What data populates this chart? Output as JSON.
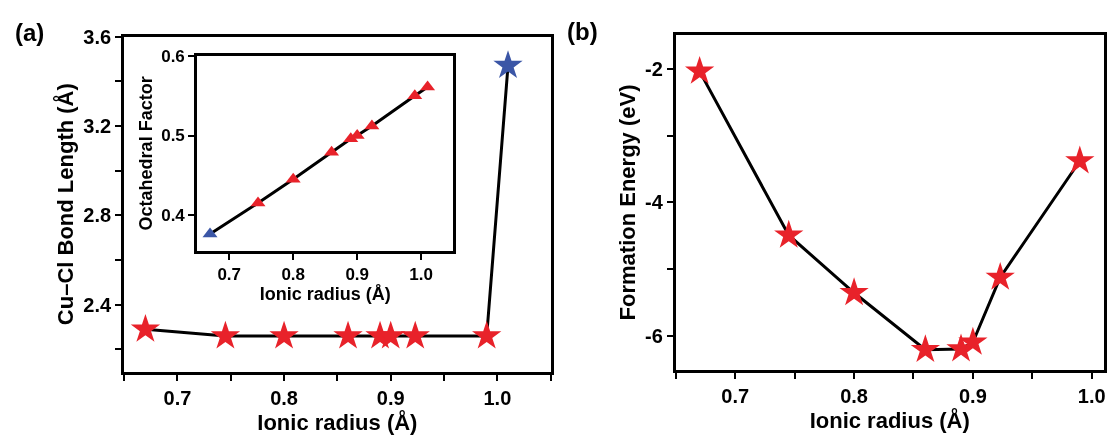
{
  "chart_data": [
    {
      "type": "line",
      "title": "(a)",
      "xlabel": "Ionic radius (Å)",
      "ylabel": "Cu–Cl Bond Length (Å)",
      "x": [
        0.67,
        0.745,
        0.8,
        0.86,
        0.89,
        0.9,
        0.923,
        0.99,
        1.01
      ],
      "series": [
        {
          "color": "#000000",
          "colors": [
            "#e8222a",
            "#e8222a",
            "#e8222a",
            "#e8222a",
            "#e8222a",
            "#e8222a",
            "#e8222a",
            "#e8222a",
            "#3b56a6"
          ],
          "values": [
            2.29,
            2.26,
            2.26,
            2.26,
            2.26,
            2.26,
            2.26,
            2.26,
            3.47
          ]
        }
      ],
      "xlim": [
        0.65,
        1.05
      ],
      "ylim": [
        2.1,
        3.6
      ],
      "xticks": [
        {
          "value": 0.65,
          "label": null
        },
        0.7,
        {
          "value": 0.75,
          "label": null
        },
        0.8,
        {
          "value": 0.85,
          "label": null
        },
        0.9,
        {
          "value": 0.95,
          "label": null
        },
        {
          "value": 1.0,
          "label": "1.0"
        },
        {
          "value": 1.05,
          "label": null
        }
      ],
      "yticks": [
        {
          "value": 2.2,
          "label": null
        },
        2.4,
        {
          "value": 2.6,
          "label": null
        },
        2.8,
        {
          "value": 3.0,
          "label": null
        },
        3.2,
        {
          "value": 3.4,
          "label": null
        },
        3.6
      ],
      "marker": "star"
    },
    {
      "type": "line",
      "xlabel": "Ionic radius (Å)",
      "ylabel": "Octahedral Factor",
      "x": [
        0.67,
        0.745,
        0.8,
        0.86,
        0.89,
        0.9,
        0.923,
        0.99,
        1.01
      ],
      "series": [
        {
          "color": "#000000",
          "colors": [
            "#3b56a6",
            "#e8222a",
            "#e8222a",
            "#e8222a",
            "#e8222a",
            "#e8222a",
            "#e8222a",
            "#e8222a",
            "#e8222a"
          ],
          "values": [
            0.376,
            0.415,
            0.445,
            0.479,
            0.496,
            0.5,
            0.512,
            0.55,
            0.561
          ]
        }
      ],
      "xlim": [
        0.65,
        1.05
      ],
      "ylim": [
        0.355,
        0.6
      ],
      "xticks": [
        0.7,
        0.8,
        0.9,
        {
          "value": 1.0,
          "label": "1.0"
        }
      ],
      "yticks": [
        0.4,
        0.5,
        0.6
      ],
      "marker": "triangle"
    },
    {
      "type": "line",
      "title": "(b)",
      "xlabel": "Ionic radius (Å)",
      "ylabel": "Formation Energy (eV)",
      "x": [
        0.67,
        0.745,
        0.8,
        0.86,
        0.89,
        0.9,
        0.923,
        0.99
      ],
      "series": [
        {
          "color": "#000000",
          "colors": [
            "#e8222a",
            "#e8222a",
            "#e8222a",
            "#e8222a",
            "#e8222a",
            "#e8222a",
            "#e8222a",
            "#e8222a"
          ],
          "values": [
            -2.04,
            -4.49,
            -5.35,
            -6.2,
            -6.19,
            -6.09,
            -5.12,
            -3.38
          ]
        }
      ],
      "xlim": [
        0.65,
        1.01
      ],
      "ylim": [
        -6.5,
        -1.5
      ],
      "xticks": [
        {
          "value": 0.65,
          "label": null
        },
        0.7,
        {
          "value": 0.75,
          "label": null
        },
        0.8,
        {
          "value": 0.85,
          "label": null
        },
        0.9,
        {
          "value": 0.95,
          "label": null
        },
        {
          "value": 1.0,
          "label": "1.0"
        }
      ],
      "yticks": [
        -6,
        {
          "value": -5,
          "label": null
        },
        -4,
        {
          "value": -3,
          "label": null
        },
        -2
      ],
      "marker": "star"
    }
  ]
}
